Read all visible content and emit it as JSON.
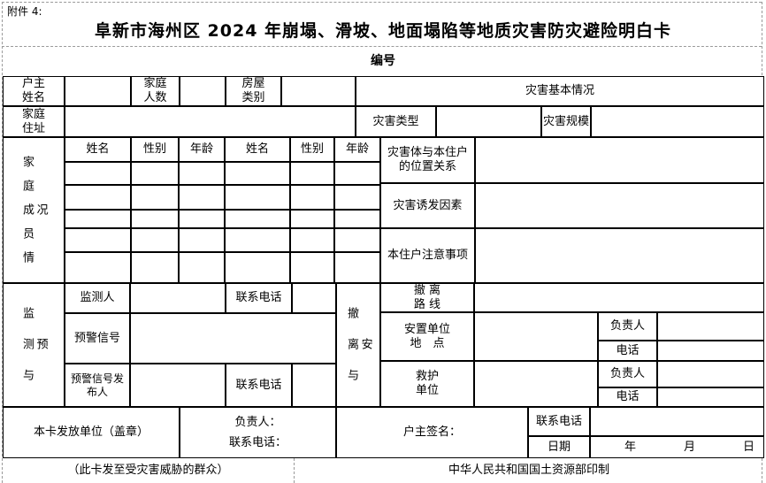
{
  "page": {
    "attachment": "附件 4:",
    "title": "阜新市海州区 2024 年崩塌、滑坡、地面塌陷等地质灾害防灾避险明白卡",
    "serial": "编号",
    "footer_note": "（此卡发至受灾害威胁的群众）",
    "footer_printer": "中华人民共和国国土资源部印制"
  },
  "basic": {
    "householder": "户主\n姓名",
    "family_size": "家庭\n人数",
    "house_type": "房屋\n类别",
    "disaster_overview": "灾害基本情况",
    "address": "家庭\n住址",
    "disaster_type": "灾害类型",
    "disaster_scale": "灾害规模"
  },
  "family": {
    "section": "家庭成员情况",
    "headers": [
      "姓名",
      "性别",
      "年龄",
      "姓名",
      "性别",
      "年龄"
    ],
    "data_rows": 5,
    "position_relation": "灾害体与本住户\n的位置关系",
    "trigger_factor": "灾害诱发因素",
    "precautions": "本住户注意事项"
  },
  "monitor": {
    "section": "监测与预",
    "person": "监测人",
    "person_phone": "联系电话",
    "signal": "预警信号",
    "issuer": "预警信号发\n布人",
    "issuer_phone": "联系电话"
  },
  "evac": {
    "section": "撤离与安",
    "route": "撤  离\n路  线",
    "placement": "安置单位\n地　点",
    "placement_leader": "负责人",
    "placement_phone": "电话",
    "rescue": "救护\n单位",
    "rescue_leader": "负责人",
    "rescue_phone": "电话"
  },
  "issue": {
    "unit": "本卡发放单位（盖章）",
    "leader_phone": "负责人：\n联系电话：",
    "signature": "户主签名：",
    "phone_label": "联系电话",
    "date_label": "日期",
    "year": "年",
    "month": "月",
    "day": "日"
  }
}
